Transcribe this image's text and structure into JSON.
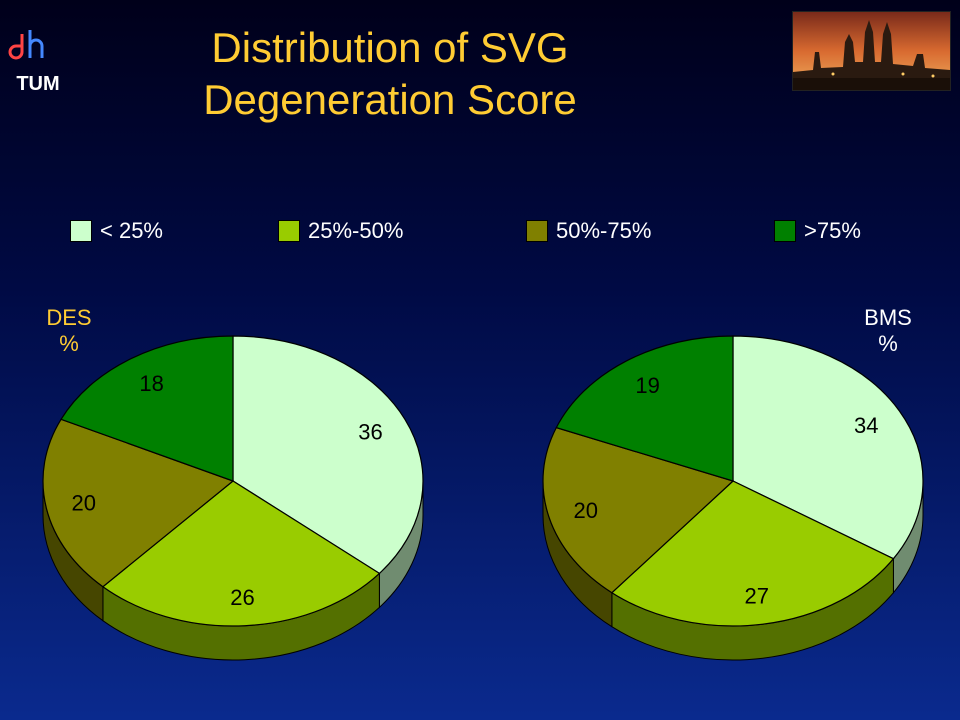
{
  "slide": {
    "title_line1": "Distribution of SVG",
    "title_line2": "Degeneration Score",
    "logo_text": "TUM"
  },
  "colors": {
    "lt25": "#ccffcc",
    "25to50": "#99cc00",
    "50to75": "#808000",
    "gt75": "#008000",
    "title": "#ffcc33"
  },
  "chart_data": [
    {
      "type": "pie",
      "ylabel_line1": "DES",
      "ylabel_line2": "%",
      "categories": [
        "< 25%",
        "25%-50%",
        "50%-75%",
        ">75%"
      ],
      "values": [
        36,
        26,
        20,
        18
      ]
    },
    {
      "type": "pie",
      "ylabel_line1": "BMS",
      "ylabel_line2": "%",
      "categories": [
        "< 25%",
        "25%-50%",
        "50%-75%",
        ">75%"
      ],
      "values": [
        34,
        27,
        20,
        19
      ]
    }
  ],
  "legend": {
    "placement": "top",
    "items": [
      "< 25%",
      "25%-50%",
      "50%-75%",
      ">75%"
    ]
  }
}
